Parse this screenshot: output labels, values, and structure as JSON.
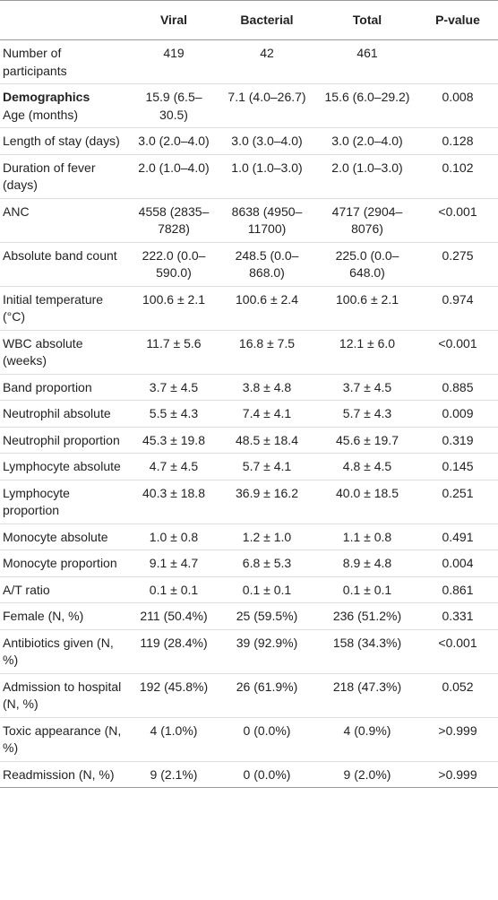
{
  "table": {
    "columns": [
      "Viral",
      "Bacterial",
      "Total",
      "P-value"
    ],
    "rows": [
      {
        "label": "Number of participants",
        "values": [
          "419",
          "42",
          "461",
          ""
        ]
      },
      {
        "section": "Demographics",
        "label": "Age (months)",
        "values": [
          "15.9 (6.5–30.5)",
          "7.1 (4.0–26.7)",
          "15.6 (6.0–29.2)",
          "0.008"
        ]
      },
      {
        "label": "Length of stay (days)",
        "values": [
          "3.0 (2.0–4.0)",
          "3.0 (3.0–4.0)",
          "3.0 (2.0–4.0)",
          "0.128"
        ]
      },
      {
        "label": "Duration of fever (days)",
        "values": [
          "2.0 (1.0–4.0)",
          "1.0 (1.0–3.0)",
          "2.0 (1.0–3.0)",
          "0.102"
        ]
      },
      {
        "label": "ANC",
        "values": [
          "4558 (2835–7828)",
          "8638 (4950–11700)",
          "4717 (2904–8076)",
          "<0.001"
        ]
      },
      {
        "label": "Absolute band count",
        "values": [
          "222.0 (0.0–590.0)",
          "248.5 (0.0–868.0)",
          "225.0 (0.0–648.0)",
          "0.275"
        ]
      },
      {
        "label": "Initial temperature (°C)",
        "values": [
          "100.6 ± 2.1",
          "100.6 ± 2.4",
          "100.6 ± 2.1",
          "0.974"
        ]
      },
      {
        "label": "WBC absolute (weeks)",
        "values": [
          "11.7 ± 5.6",
          "16.8 ± 7.5",
          "12.1 ± 6.0",
          "<0.001"
        ]
      },
      {
        "label": "Band proportion",
        "values": [
          "3.7 ± 4.5",
          "3.8 ± 4.8",
          "3.7 ± 4.5",
          "0.885"
        ]
      },
      {
        "label": "Neutrophil absolute",
        "values": [
          "5.5 ± 4.3",
          "7.4 ± 4.1",
          "5.7 ± 4.3",
          "0.009"
        ]
      },
      {
        "label": "Neutrophil proportion",
        "values": [
          "45.3 ± 19.8",
          "48.5 ± 18.4",
          "45.6 ± 19.7",
          "0.319"
        ]
      },
      {
        "label": "Lymphocyte absolute",
        "values": [
          "4.7 ± 4.5",
          "5.7 ± 4.1",
          "4.8 ± 4.5",
          "0.145"
        ]
      },
      {
        "label": "Lymphocyte proportion",
        "values": [
          "40.3 ± 18.8",
          "36.9 ± 16.2",
          "40.0 ± 18.5",
          "0.251"
        ]
      },
      {
        "label": "Monocyte absolute",
        "values": [
          "1.0 ± 0.8",
          "1.2 ± 1.0",
          "1.1 ± 0.8",
          "0.491"
        ]
      },
      {
        "label": "Monocyte proportion",
        "values": [
          "9.1 ± 4.7",
          "6.8 ± 5.3",
          "8.9 ± 4.8",
          "0.004"
        ]
      },
      {
        "label": "A/T ratio",
        "values": [
          "0.1 ± 0.1",
          "0.1 ± 0.1",
          "0.1 ± 0.1",
          "0.861"
        ]
      },
      {
        "label": "Female (N, %)",
        "values": [
          "211 (50.4%)",
          "25 (59.5%)",
          "236 (51.2%)",
          "0.331"
        ]
      },
      {
        "label": "Antibiotics given (N, %)",
        "values": [
          "119 (28.4%)",
          "39 (92.9%)",
          "158 (34.3%)",
          "<0.001"
        ]
      },
      {
        "label": "Admission to hospital (N, %)",
        "values": [
          "192 (45.8%)",
          "26 (61.9%)",
          "218 (47.3%)",
          "0.052"
        ]
      },
      {
        "label": "Toxic appearance (N, %)",
        "values": [
          "4 (1.0%)",
          "0 (0.0%)",
          "4 (0.9%)",
          ">0.999"
        ]
      },
      {
        "label": "Readmission (N, %)",
        "values": [
          "9 (2.1%)",
          "0 (0.0%)",
          "9 (2.0%)",
          ">0.999"
        ]
      }
    ]
  }
}
